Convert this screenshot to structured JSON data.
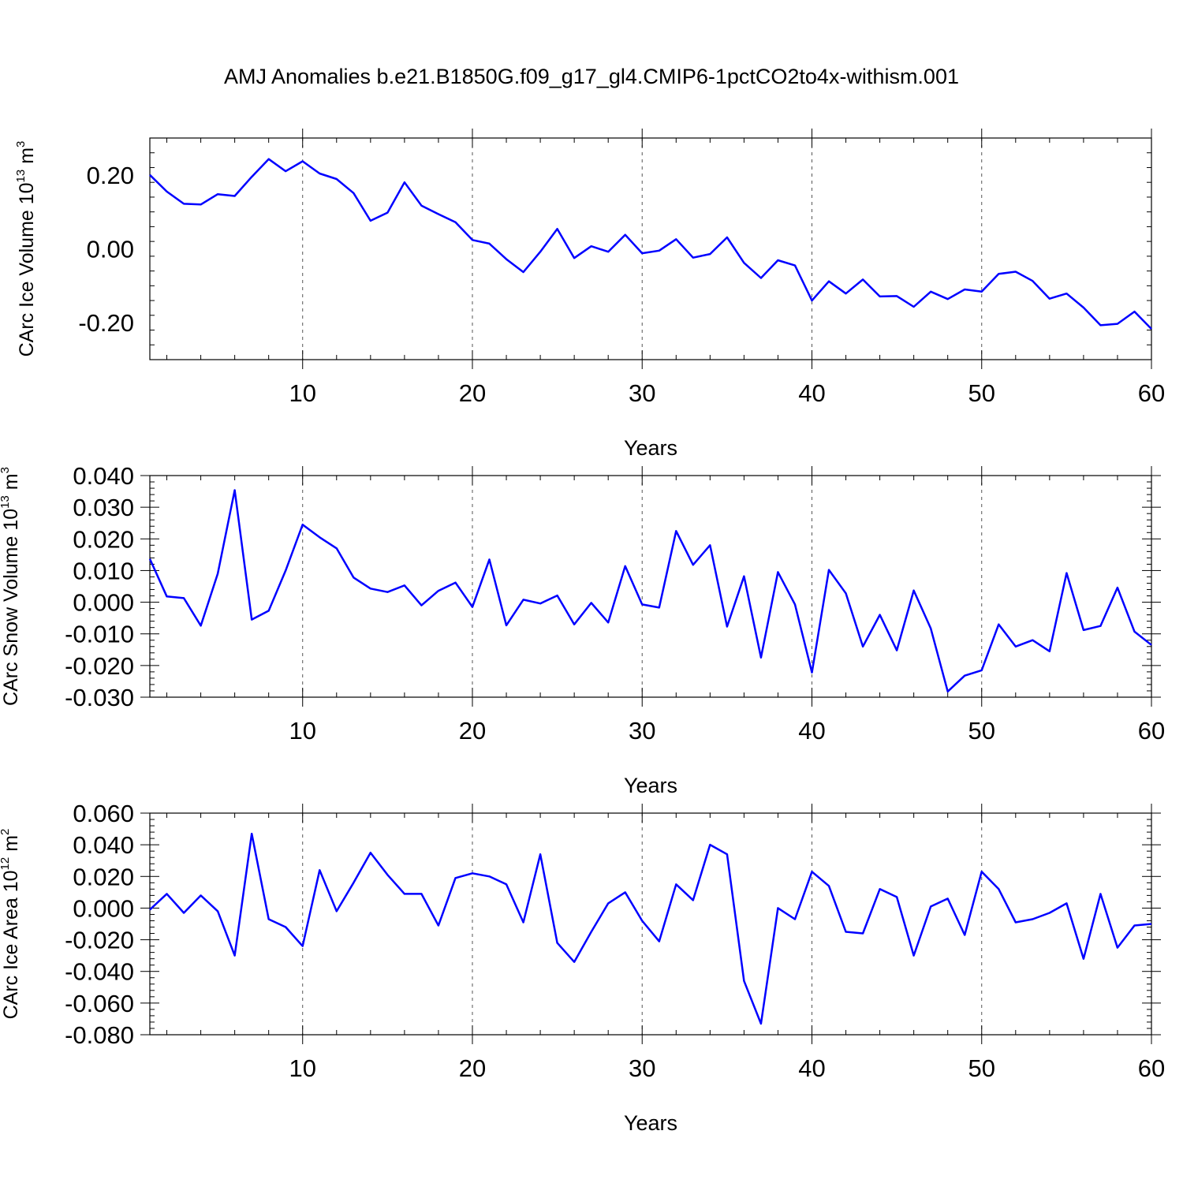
{
  "title": "AMJ Anomalies b.e21.B1850G.f09_g17_gl4.CMIP6-1pctCO2to4x-withism.001",
  "colors": {
    "line": "#0000ff",
    "axis": "#000000",
    "grid": "#555555"
  },
  "chart_data": [
    {
      "type": "line",
      "ylabel": "CArc Ice Volume 10",
      "ylabel_exp": "13",
      "ylabel_unit": " m",
      "ylabel_unit_exp": "3",
      "xlabel": "Years",
      "xlim": [
        1,
        60
      ],
      "ylim": [
        -0.3,
        0.3
      ],
      "xticks": [
        10,
        20,
        30,
        40,
        50,
        60
      ],
      "xtick_labels": [
        "10",
        "20",
        "30",
        "40",
        "50",
        "60"
      ],
      "yticks": [
        -0.2,
        0.0,
        0.2
      ],
      "ytick_labels": [
        "-0.20",
        "0.00",
        "0.20"
      ],
      "grid": "vertical dashed at major x ticks",
      "x": [
        1,
        2,
        3,
        4,
        5,
        6,
        7,
        8,
        9,
        10,
        11,
        12,
        13,
        14,
        15,
        16,
        17,
        18,
        19,
        20,
        21,
        22,
        23,
        24,
        25,
        26,
        27,
        28,
        29,
        30,
        31,
        32,
        33,
        34,
        35,
        36,
        37,
        38,
        39,
        40,
        41,
        42,
        43,
        44,
        45,
        46,
        47,
        48,
        49,
        50,
        51,
        52,
        53,
        54,
        55,
        56,
        57,
        58,
        59,
        60
      ],
      "series": [
        {
          "values": [
            0.2,
            0.155,
            0.122,
            0.12,
            0.148,
            0.143,
            0.195,
            0.243,
            0.21,
            0.237,
            0.204,
            0.189,
            0.151,
            0.076,
            0.098,
            0.18,
            0.117,
            0.094,
            0.072,
            0.024,
            0.014,
            -0.028,
            -0.063,
            -0.008,
            0.054,
            -0.025,
            0.007,
            -0.008,
            0.038,
            -0.012,
            -0.005,
            0.026,
            -0.024,
            -0.014,
            0.031,
            -0.038,
            -0.079,
            -0.031,
            -0.045,
            -0.14,
            -0.088,
            -0.121,
            -0.083,
            -0.129,
            -0.128,
            -0.157,
            -0.116,
            -0.136,
            -0.11,
            -0.116,
            -0.068,
            -0.062,
            -0.087,
            -0.135,
            -0.121,
            -0.159,
            -0.207,
            -0.203,
            -0.17,
            -0.217
          ]
        }
      ]
    },
    {
      "type": "line",
      "ylabel": "CArc Snow Volume 10",
      "ylabel_exp": "13",
      "ylabel_unit": " m",
      "ylabel_unit_exp": "3",
      "xlabel": "Years",
      "xlim": [
        1,
        60
      ],
      "ylim": [
        -0.03,
        0.04
      ],
      "xticks": [
        10,
        20,
        30,
        40,
        50,
        60
      ],
      "xtick_labels": [
        "10",
        "20",
        "30",
        "40",
        "50",
        "60"
      ],
      "yticks": [
        -0.03,
        -0.02,
        -0.01,
        0.0,
        0.01,
        0.02,
        0.03,
        0.04
      ],
      "ytick_labels": [
        "-0.030",
        "-0.020",
        "-0.010",
        "0.000",
        "0.010",
        "0.020",
        "0.030",
        "0.040"
      ],
      "grid": "vertical dashed at major x ticks",
      "x": [
        1,
        2,
        3,
        4,
        5,
        6,
        7,
        8,
        9,
        10,
        11,
        12,
        13,
        14,
        15,
        16,
        17,
        18,
        19,
        20,
        21,
        22,
        23,
        24,
        25,
        26,
        27,
        28,
        29,
        30,
        31,
        32,
        33,
        34,
        35,
        36,
        37,
        38,
        39,
        40,
        41,
        42,
        43,
        44,
        45,
        46,
        47,
        48,
        49,
        50,
        51,
        52,
        53,
        54,
        55,
        56,
        57,
        58,
        59,
        60
      ],
      "series": [
        {
          "values": [
            0.0137,
            0.0018,
            0.0013,
            -0.0074,
            0.009,
            0.0354,
            -0.0055,
            -0.0027,
            0.01,
            0.0245,
            0.0205,
            0.017,
            0.0078,
            0.0043,
            0.0032,
            0.0053,
            -0.001,
            0.0036,
            0.0062,
            -0.0015,
            0.0135,
            -0.0073,
            0.0008,
            -0.0004,
            0.0021,
            -0.007,
            -0.0002,
            -0.0064,
            0.0114,
            -0.0007,
            -0.0017,
            0.0225,
            0.0118,
            0.018,
            -0.0077,
            0.0082,
            -0.0175,
            0.0095,
            -0.0007,
            -0.0222,
            0.0102,
            0.0028,
            -0.014,
            -0.004,
            -0.0152,
            0.0037,
            -0.0083,
            -0.0282,
            -0.0232,
            -0.0215,
            -0.007,
            -0.014,
            -0.012,
            -0.0155,
            0.0092,
            -0.0088,
            -0.0075,
            0.0046,
            -0.0093,
            -0.0135
          ]
        }
      ]
    },
    {
      "type": "line",
      "ylabel": "CArc Ice Area 10",
      "ylabel_exp": "12",
      "ylabel_unit": " m",
      "ylabel_unit_exp": "2",
      "xlabel": "Years",
      "xlim": [
        1,
        60
      ],
      "ylim": [
        -0.08,
        0.06
      ],
      "xticks": [
        10,
        20,
        30,
        40,
        50,
        60
      ],
      "xtick_labels": [
        "10",
        "20",
        "30",
        "40",
        "50",
        "60"
      ],
      "yticks": [
        -0.08,
        -0.06,
        -0.04,
        -0.02,
        0.0,
        0.02,
        0.04,
        0.06
      ],
      "ytick_labels": [
        "-0.080",
        "-0.060",
        "-0.040",
        "-0.020",
        "0.000",
        "0.020",
        "0.040",
        "0.060"
      ],
      "grid": "vertical dashed at major x ticks",
      "x": [
        1,
        2,
        3,
        4,
        5,
        6,
        7,
        8,
        9,
        10,
        11,
        12,
        13,
        14,
        15,
        16,
        17,
        18,
        19,
        20,
        21,
        22,
        23,
        24,
        25,
        26,
        27,
        28,
        29,
        30,
        31,
        32,
        33,
        34,
        35,
        36,
        37,
        38,
        39,
        40,
        41,
        42,
        43,
        44,
        45,
        46,
        47,
        48,
        49,
        50,
        51,
        52,
        53,
        54,
        55,
        56,
        57,
        58,
        59,
        60
      ],
      "series": [
        {
          "values": [
            -0.001,
            0.009,
            -0.003,
            0.008,
            -0.002,
            -0.03,
            0.047,
            -0.007,
            -0.012,
            -0.024,
            0.024,
            -0.002,
            0.016,
            0.035,
            0.021,
            0.009,
            0.009,
            -0.011,
            0.019,
            0.022,
            0.02,
            0.015,
            -0.009,
            0.034,
            -0.022,
            -0.034,
            -0.015,
            0.003,
            0.01,
            -0.008,
            -0.021,
            0.015,
            0.005,
            0.04,
            0.034,
            -0.046,
            -0.073,
            0.0,
            -0.007,
            0.023,
            0.014,
            -0.015,
            -0.016,
            0.012,
            0.007,
            -0.03,
            0.001,
            0.006,
            -0.017,
            0.023,
            0.012,
            -0.009,
            -0.007,
            -0.003,
            0.003,
            -0.032,
            0.009,
            -0.025,
            -0.011,
            -0.01
          ]
        }
      ]
    }
  ]
}
